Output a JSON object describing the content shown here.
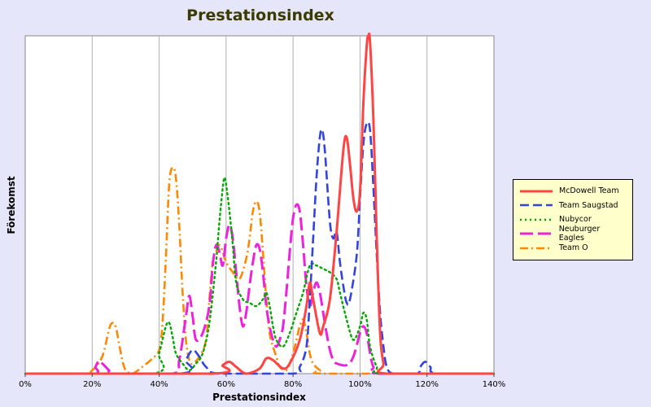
{
  "chart_data": {
    "type": "line",
    "title": "Prestationsindex",
    "xlabel": "Prestationsindex",
    "ylabel": "Förekomst",
    "xlim": [
      0,
      140
    ],
    "ylim": [
      0,
      100
    ],
    "x_ticks": [
      "0%",
      "20%",
      "40%",
      "60%",
      "80%",
      "100%",
      "120%",
      "140%"
    ],
    "grid": "vertical",
    "legend_position": "right",
    "series": [
      {
        "name": "McDowell Team",
        "color": "#ff4444",
        "dash": "solid",
        "points": [
          [
            0,
            0
          ],
          [
            56,
            0
          ],
          [
            59,
            2.5
          ],
          [
            61,
            3.5
          ],
          [
            63,
            2
          ],
          [
            66,
            0
          ],
          [
            70,
            1.5
          ],
          [
            72,
            4.5
          ],
          [
            74,
            4
          ],
          [
            77,
            1.5
          ],
          [
            79,
            3
          ],
          [
            82,
            10
          ],
          [
            84,
            20
          ],
          [
            85,
            27
          ],
          [
            86,
            22
          ],
          [
            88,
            12
          ],
          [
            89,
            14
          ],
          [
            91,
            22
          ],
          [
            93,
            42
          ],
          [
            95,
            66
          ],
          [
            96,
            70
          ],
          [
            97,
            62
          ],
          [
            98,
            52
          ],
          [
            99,
            48
          ],
          [
            100,
            54
          ],
          [
            101,
            80
          ],
          [
            102,
            97
          ],
          [
            102.5,
            100
          ],
          [
            103,
            98
          ],
          [
            104,
            75
          ],
          [
            105,
            40
          ],
          [
            106,
            12
          ],
          [
            107,
            3
          ],
          [
            108,
            0
          ],
          [
            140,
            0
          ]
        ]
      },
      {
        "name": "Team Saugstad",
        "color": "#3344dd",
        "dash": "dashed",
        "points": [
          [
            0,
            0
          ],
          [
            46,
            0
          ],
          [
            48,
            4
          ],
          [
            50,
            7
          ],
          [
            52,
            5
          ],
          [
            54,
            2
          ],
          [
            58,
            0
          ],
          [
            80,
            0
          ],
          [
            82,
            2
          ],
          [
            84,
            8
          ],
          [
            85,
            22
          ],
          [
            86,
            40
          ],
          [
            87,
            58
          ],
          [
            88,
            70
          ],
          [
            88.7,
            72
          ],
          [
            89.5,
            66
          ],
          [
            91,
            45
          ],
          [
            92,
            40
          ],
          [
            93,
            42
          ],
          [
            94,
            33
          ],
          [
            95,
            26
          ],
          [
            96,
            21
          ],
          [
            97,
            22
          ],
          [
            99,
            35
          ],
          [
            100,
            52
          ],
          [
            101,
            68
          ],
          [
            102,
            74
          ],
          [
            103,
            72
          ],
          [
            104,
            55
          ],
          [
            105,
            35
          ],
          [
            106,
            18
          ],
          [
            107,
            8
          ],
          [
            108,
            2
          ],
          [
            110,
            0
          ],
          [
            117,
            0
          ],
          [
            118,
            2
          ],
          [
            119.5,
            3.5
          ],
          [
            121,
            2
          ],
          [
            123,
            0
          ],
          [
            140,
            0
          ]
        ]
      },
      {
        "name": "Nubycor",
        "color": "#00aa00",
        "dash": "dotted",
        "points": [
          [
            0,
            0
          ],
          [
            38,
            0
          ],
          [
            40,
            6
          ],
          [
            42,
            14
          ],
          [
            43,
            15
          ],
          [
            44,
            11
          ],
          [
            45,
            6
          ],
          [
            47,
            3
          ],
          [
            49,
            1
          ],
          [
            51,
            3
          ],
          [
            53,
            6
          ],
          [
            55,
            15
          ],
          [
            57,
            33
          ],
          [
            58,
            45
          ],
          [
            59,
            55
          ],
          [
            59.5,
            58
          ],
          [
            60,
            56
          ],
          [
            61,
            48
          ],
          [
            62,
            38
          ],
          [
            63,
            27
          ],
          [
            65,
            22
          ],
          [
            67,
            21
          ],
          [
            69,
            20
          ],
          [
            71,
            22
          ],
          [
            72,
            24
          ],
          [
            73,
            20
          ],
          [
            74,
            14
          ],
          [
            75,
            10
          ],
          [
            77,
            8
          ],
          [
            79,
            12
          ],
          [
            81,
            18
          ],
          [
            83,
            24
          ],
          [
            85,
            32
          ],
          [
            87,
            32
          ],
          [
            89,
            31
          ],
          [
            91,
            30
          ],
          [
            93,
            28
          ],
          [
            94,
            24
          ],
          [
            96,
            16
          ],
          [
            98,
            10
          ],
          [
            100,
            14
          ],
          [
            101,
            18
          ],
          [
            102,
            16
          ],
          [
            103,
            8
          ],
          [
            105,
            2
          ],
          [
            107,
            0
          ],
          [
            140,
            0
          ]
        ]
      },
      {
        "name": "Neuburger Eagles",
        "color": "#ee22dd",
        "dash": "longdash",
        "points": [
          [
            0,
            0
          ],
          [
            20,
            0
          ],
          [
            21,
            2
          ],
          [
            22,
            3.8
          ],
          [
            23,
            3
          ],
          [
            25,
            1
          ],
          [
            26,
            0
          ],
          [
            44,
            0
          ],
          [
            46,
            4
          ],
          [
            48,
            17
          ],
          [
            49,
            23
          ],
          [
            50,
            17
          ],
          [
            51,
            10
          ],
          [
            53,
            12
          ],
          [
            55,
            20
          ],
          [
            56,
            32
          ],
          [
            57,
            38
          ],
          [
            58,
            36
          ],
          [
            59,
            32
          ],
          [
            60,
            40
          ],
          [
            61,
            44
          ],
          [
            62,
            40
          ],
          [
            63,
            30
          ],
          [
            64,
            20
          ],
          [
            65,
            14
          ],
          [
            66,
            18
          ],
          [
            67,
            26
          ],
          [
            68,
            33
          ],
          [
            69,
            38
          ],
          [
            70,
            37
          ],
          [
            71,
            30
          ],
          [
            72,
            20
          ],
          [
            73,
            14
          ],
          [
            74,
            10
          ],
          [
            75,
            8
          ],
          [
            76,
            10
          ],
          [
            77,
            14
          ],
          [
            78,
            24
          ],
          [
            79,
            36
          ],
          [
            80,
            46
          ],
          [
            81,
            50
          ],
          [
            82,
            48
          ],
          [
            83,
            38
          ],
          [
            84,
            26
          ],
          [
            85,
            20
          ],
          [
            86,
            24
          ],
          [
            87,
            27
          ],
          [
            88,
            24
          ],
          [
            89,
            18
          ],
          [
            90,
            12
          ],
          [
            91,
            7
          ],
          [
            92,
            4
          ],
          [
            93,
            3
          ],
          [
            96,
            2.5
          ],
          [
            98,
            5
          ],
          [
            100,
            12
          ],
          [
            101,
            14
          ],
          [
            102,
            12
          ],
          [
            103,
            6
          ],
          [
            104,
            2
          ],
          [
            106,
            0
          ],
          [
            140,
            0
          ]
        ]
      },
      {
        "name": "Team O",
        "color": "#ff8800",
        "dash": "dashdot",
        "points": [
          [
            0,
            0
          ],
          [
            17,
            0
          ],
          [
            20,
            1
          ],
          [
            23,
            5
          ],
          [
            25,
            13
          ],
          [
            26,
            15
          ],
          [
            27,
            14
          ],
          [
            28,
            9
          ],
          [
            29,
            4
          ],
          [
            30,
            1
          ],
          [
            32,
            0
          ],
          [
            35,
            2
          ],
          [
            38,
            4.5
          ],
          [
            40,
            7
          ],
          [
            41,
            15
          ],
          [
            42,
            34
          ],
          [
            43,
            56
          ],
          [
            44,
            61
          ],
          [
            45,
            58
          ],
          [
            46,
            44
          ],
          [
            47,
            24
          ],
          [
            48,
            10
          ],
          [
            49,
            4
          ],
          [
            50,
            3
          ],
          [
            52,
            5
          ],
          [
            54,
            10
          ],
          [
            55,
            22
          ],
          [
            56,
            33
          ],
          [
            57,
            36
          ],
          [
            58,
            38
          ],
          [
            59,
            36
          ],
          [
            60,
            33
          ],
          [
            62,
            30
          ],
          [
            64,
            28
          ],
          [
            66,
            34
          ],
          [
            67,
            40
          ],
          [
            68,
            48
          ],
          [
            69,
            51
          ],
          [
            70,
            48
          ],
          [
            71,
            36
          ],
          [
            72,
            22
          ],
          [
            73,
            12
          ],
          [
            74,
            8
          ],
          [
            75,
            5
          ],
          [
            76,
            2
          ],
          [
            78,
            1
          ],
          [
            79,
            3
          ],
          [
            80,
            6
          ],
          [
            81,
            10
          ],
          [
            82,
            14
          ],
          [
            83,
            16
          ],
          [
            84,
            12
          ],
          [
            85,
            6
          ],
          [
            86,
            3
          ],
          [
            88,
            1
          ],
          [
            90,
            0
          ],
          [
            140,
            0
          ]
        ]
      }
    ]
  }
}
